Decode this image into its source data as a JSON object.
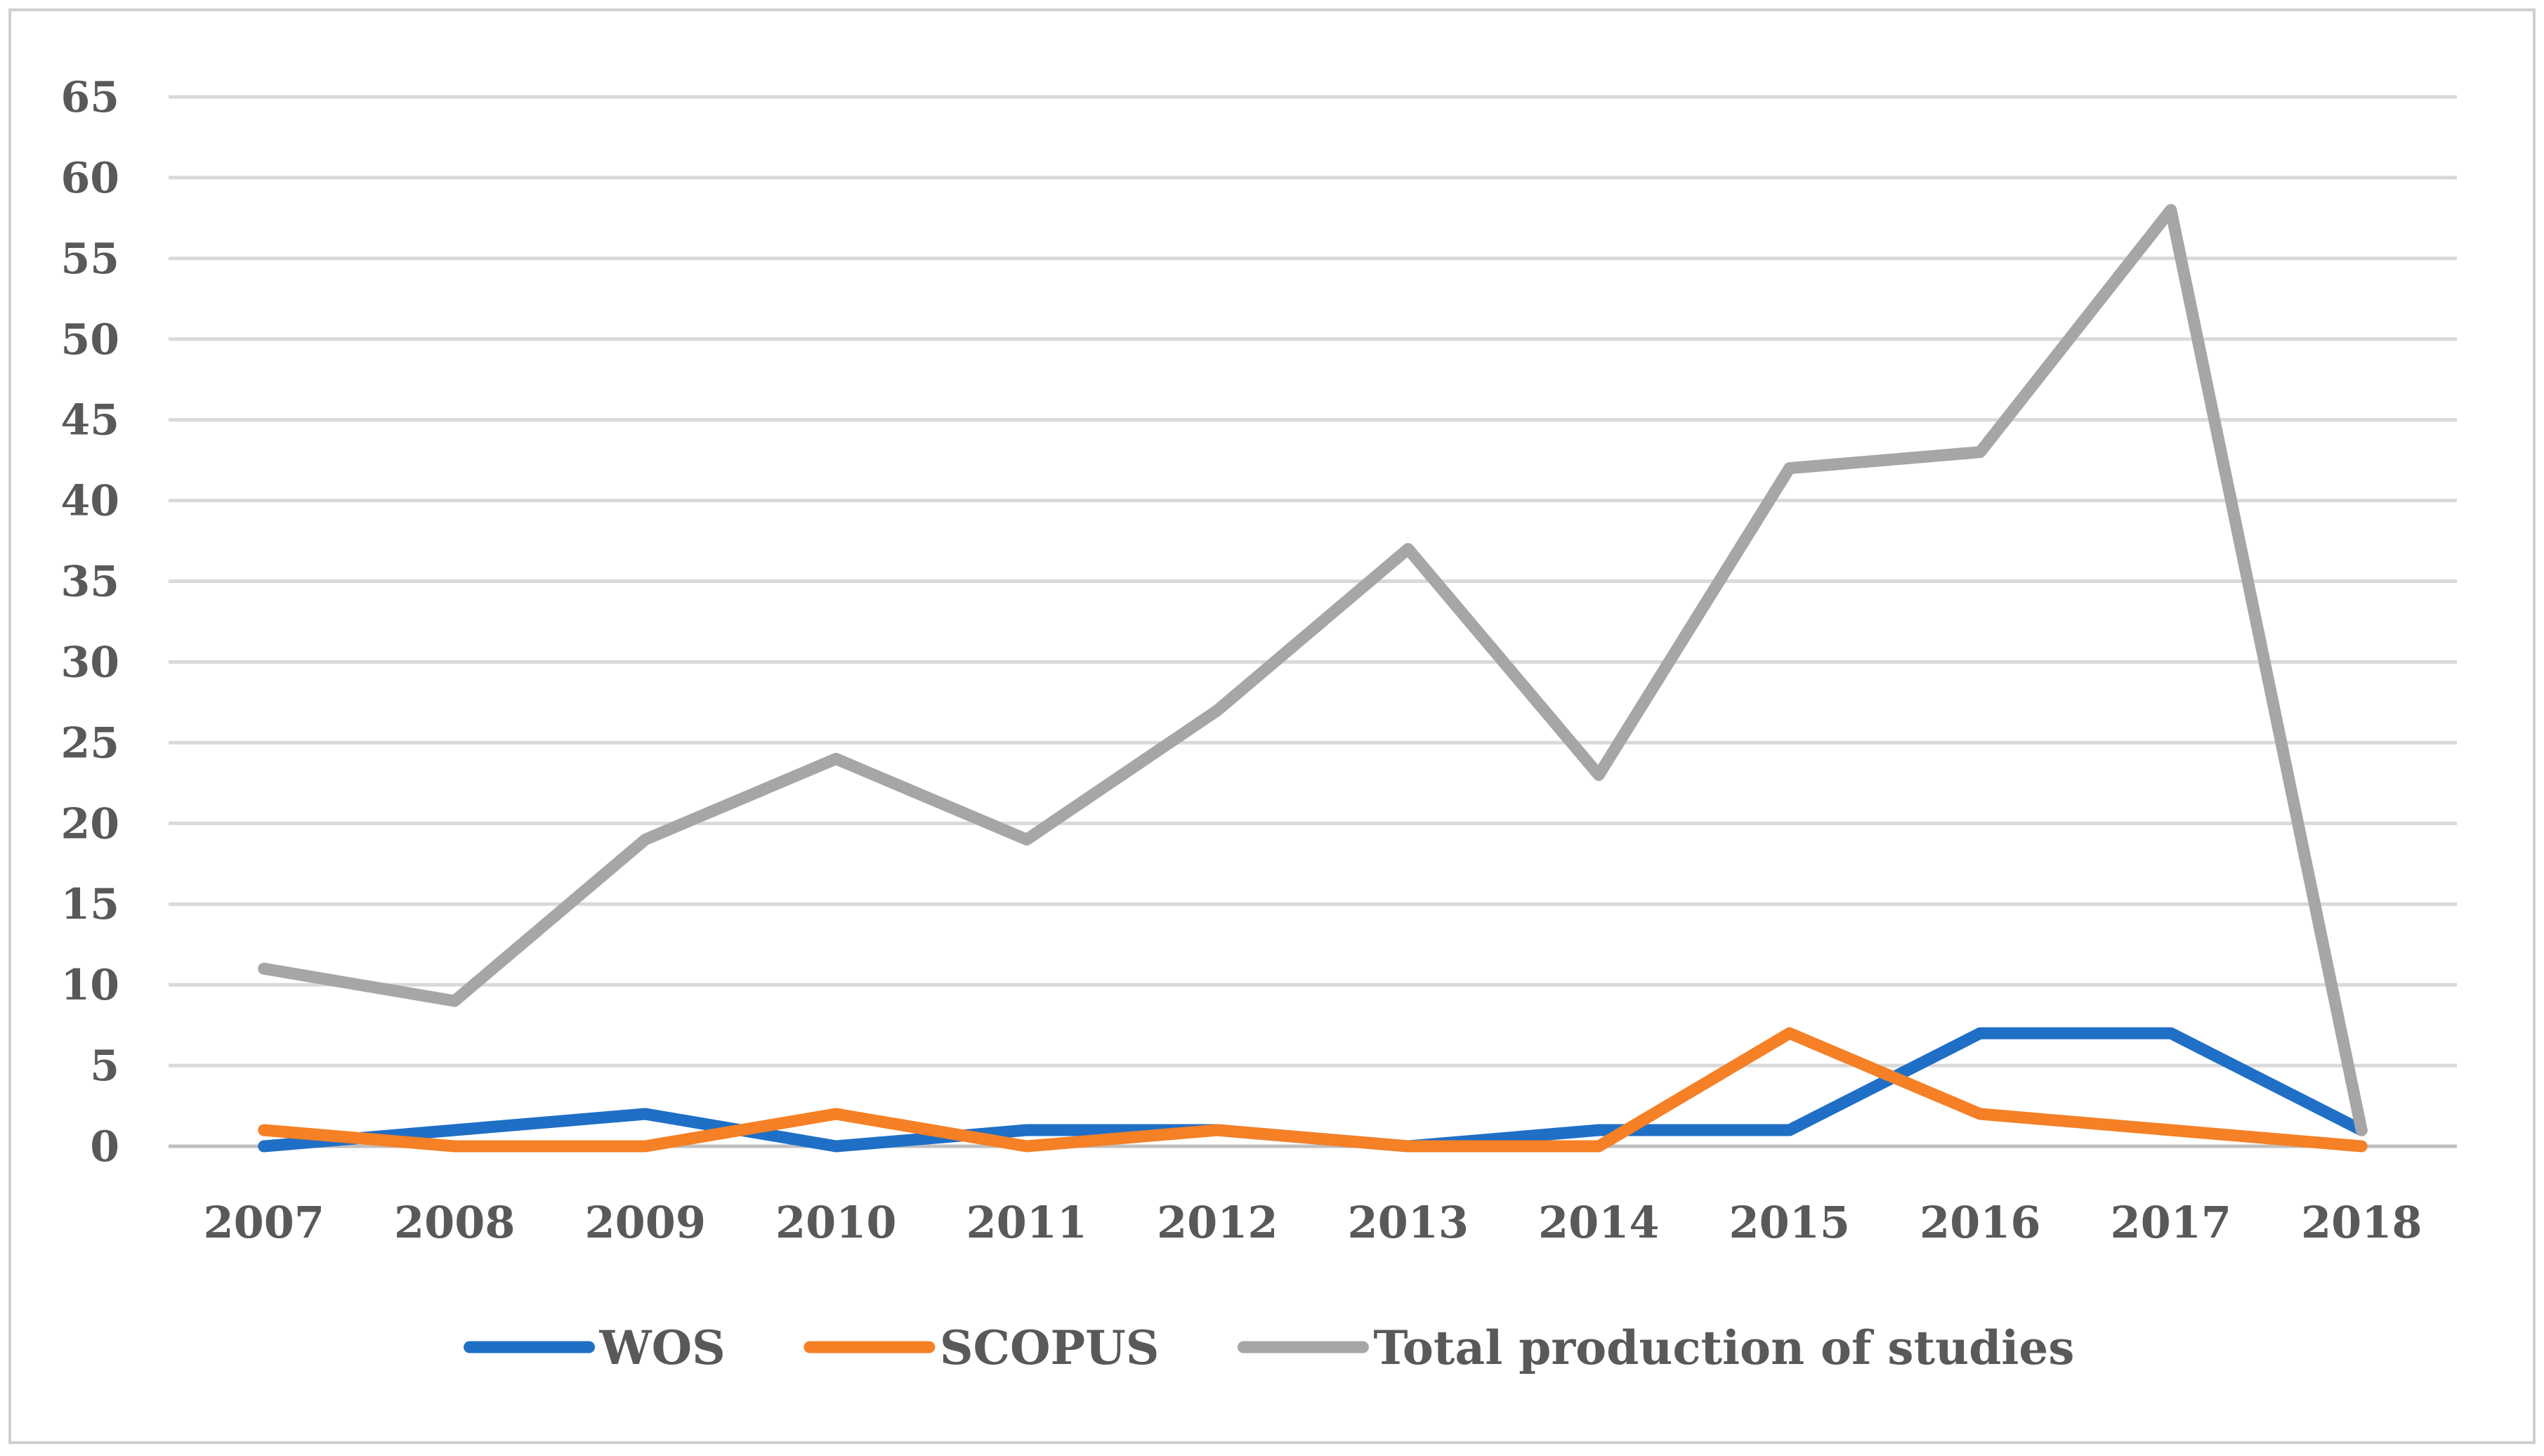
{
  "chart_data": {
    "type": "line",
    "title": "",
    "xlabel": "",
    "ylabel": "",
    "categories": [
      "2007",
      "2008",
      "2009",
      "2010",
      "2011",
      "2012",
      "2013",
      "2014",
      "2015",
      "2016",
      "2017",
      "2018"
    ],
    "ylim": [
      0,
      65
    ],
    "yticks": [
      "0",
      "5",
      "10",
      "15",
      "20",
      "25",
      "30",
      "35",
      "40",
      "45",
      "50",
      "55",
      "60",
      "65"
    ],
    "grid": true,
    "legend_position": "bottom",
    "series": [
      {
        "name": "WOS",
        "color": "#1f6fc6",
        "values": [
          0,
          1,
          2,
          0,
          1,
          1,
          0,
          1,
          1,
          7,
          7,
          1
        ]
      },
      {
        "name": "SCOPUS",
        "color": "#f58025",
        "values": [
          1,
          0,
          0,
          2,
          0,
          1,
          0,
          0,
          7,
          2,
          1,
          0
        ]
      },
      {
        "name": "Total production of studies",
        "color": "#a6a6a6",
        "values": [
          11,
          9,
          19,
          24,
          19,
          27,
          37,
          23,
          42,
          43,
          58,
          1
        ]
      }
    ]
  }
}
